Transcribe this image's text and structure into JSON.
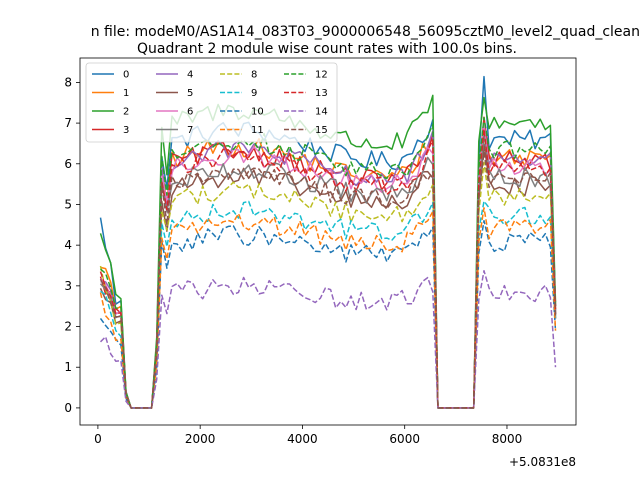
{
  "figure": {
    "suptitle": "n file: modeM0/AS1A14_083T03_9000006548_56095cztM0_level2_quad_clean"
  },
  "chart_data": {
    "type": "line",
    "title": "Quadrant 2 module wise count rates with 100.0s bins.",
    "xlabel": "",
    "ylabel": "",
    "xlim": [
      -350,
      9350
    ],
    "ylim": [
      -0.42,
      8.6
    ],
    "x_offset_label": "+5.0831e8",
    "xticks": [
      0,
      2000,
      4000,
      6000,
      8000
    ],
    "xtick_labels": [
      "0",
      "2000",
      "4000",
      "6000",
      "8000"
    ],
    "yticks": [
      0,
      1,
      2,
      3,
      4,
      5,
      6,
      7,
      8
    ],
    "ytick_labels": [
      "0",
      "1",
      "2",
      "3",
      "4",
      "5",
      "6",
      "7",
      "8"
    ],
    "legend_position": "upper-left",
    "legend_columns": 4,
    "x_note": "100 s bins; x values in seconds relative to the +5.0831e8 offset",
    "segments": [
      {
        "x_start": 50,
        "x_end": 1050,
        "bins": 11
      },
      {
        "x_start": 1150,
        "x_end": 6550,
        "bins": 55
      },
      {
        "x_start": 6650,
        "x_end": 7350,
        "bins": 8
      },
      {
        "x_start": 7450,
        "x_end": 8950,
        "bins": 16
      }
    ],
    "series": [
      {
        "name": "0",
        "color": "#1f77b4",
        "dash": "solid",
        "level": 6.45,
        "start": 4.6,
        "peak": 8.15,
        "end": 2.3
      },
      {
        "name": "1",
        "color": "#ff7f0e",
        "dash": "solid",
        "level": 6.05,
        "start": 3.6,
        "peak": 7.0,
        "end": 2.5
      },
      {
        "name": "2",
        "color": "#2ca02c",
        "dash": "solid",
        "level": 6.9,
        "start": 4.3,
        "peak": 7.6,
        "end": 2.6
      },
      {
        "name": "3",
        "color": "#d62728",
        "dash": "solid",
        "level": 5.95,
        "start": 3.1,
        "peak": 7.1,
        "end": 2.3
      },
      {
        "name": "4",
        "color": "#9467bd",
        "dash": "solid",
        "level": 6.0,
        "start": 3.2,
        "peak": 6.8,
        "end": 2.5
      },
      {
        "name": "5",
        "color": "#8c564b",
        "dash": "solid",
        "level": 5.35,
        "start": 2.9,
        "peak": 6.4,
        "end": 2.2
      },
      {
        "name": "6",
        "color": "#e377c2",
        "dash": "solid",
        "level": 5.85,
        "start": 3.0,
        "peak": 6.9,
        "end": 2.4
      },
      {
        "name": "7",
        "color": "#7f7f7f",
        "dash": "solid",
        "level": 5.55,
        "start": 3.1,
        "peak": 6.6,
        "end": 2.3
      },
      {
        "name": "8",
        "color": "#bcbd22",
        "dash": "dashed",
        "level": 5.05,
        "start": 3.4,
        "peak": 5.9,
        "end": 2.4
      },
      {
        "name": "9",
        "color": "#17becf",
        "dash": "dashed",
        "level": 4.6,
        "start": 3.0,
        "peak": 5.2,
        "end": 2.2
      },
      {
        "name": "10",
        "color": "#1f77b4",
        "dash": "dashed",
        "level": 4.0,
        "start": 2.2,
        "peak": 4.7,
        "end": 1.9
      },
      {
        "name": "11",
        "color": "#ff7f0e",
        "dash": "dashed",
        "level": 4.3,
        "start": 2.7,
        "peak": 5.0,
        "end": 1.9
      },
      {
        "name": "12",
        "color": "#2ca02c",
        "dash": "dashed",
        "level": 6.2,
        "start": 3.5,
        "peak": 7.2,
        "end": 2.5
      },
      {
        "name": "13",
        "color": "#d62728",
        "dash": "dashed",
        "level": 5.8,
        "start": 3.3,
        "peak": 6.9,
        "end": 2.4
      },
      {
        "name": "14",
        "color": "#9467bd",
        "dash": "dashed",
        "level": 2.8,
        "start": 1.8,
        "peak": 3.4,
        "end": 1.0
      },
      {
        "name": "15",
        "color": "#8c564b",
        "dash": "dashed",
        "level": 5.45,
        "start": 3.2,
        "peak": 6.3,
        "end": 2.2
      }
    ]
  }
}
